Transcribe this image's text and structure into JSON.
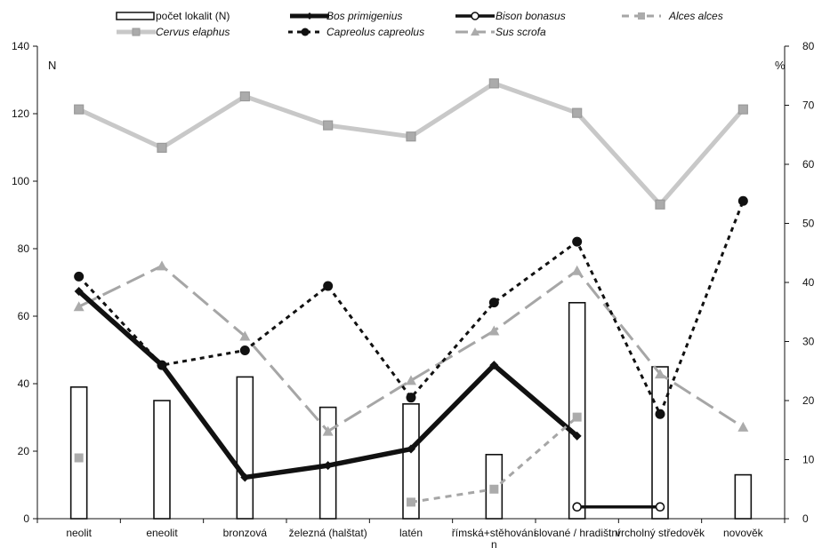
{
  "chart_data": {
    "type": "bar+line",
    "categories": [
      "neolit",
      "eneolit",
      "bronzová",
      "železná (halštat)",
      "latén",
      "římská+stěhování\nn",
      "slované / hradištní",
      "vrcholný středověk",
      "novověk"
    ],
    "left_axis": {
      "label": "N",
      "min": 0,
      "max": 140,
      "step": 20
    },
    "right_axis": {
      "label": "%",
      "min": 0,
      "max": 80,
      "step": 10
    },
    "bars": {
      "name": "počet lokalit  (N)",
      "axis": "left",
      "values": [
        39,
        35,
        42,
        33,
        34,
        19,
        64,
        45,
        13
      ]
    },
    "series": [
      {
        "name": "Bos primigenius",
        "key": "bos",
        "axis": "right",
        "values": [
          38.5,
          26,
          7,
          9,
          11.8,
          26,
          14,
          null,
          null
        ]
      },
      {
        "name": "Bison bonasus",
        "key": "bison",
        "axis": "right",
        "values": [
          null,
          null,
          null,
          null,
          null,
          null,
          2,
          2,
          null
        ]
      },
      {
        "name": "Alces alces",
        "key": "alces",
        "axis": "right",
        "values": [
          10.3,
          null,
          null,
          null,
          2.8,
          5,
          17.2,
          null,
          null
        ]
      },
      {
        "name": "Cervus elaphus",
        "key": "cervus",
        "axis": "right",
        "values": [
          69.3,
          62.8,
          71.5,
          66.6,
          64.7,
          73.7,
          68.7,
          53.2,
          69.3
        ]
      },
      {
        "name": "Capreolus capreolus",
        "key": "capreolus",
        "axis": "right",
        "values": [
          41,
          26,
          28.5,
          39.4,
          20.5,
          36.6,
          46.9,
          17.7,
          53.8
        ]
      },
      {
        "name": "Sus scrofa",
        "key": "sus",
        "axis": "right",
        "values": [
          35.9,
          42.8,
          30.9,
          14.8,
          23.4,
          31.8,
          42,
          24.5,
          15.5
        ]
      }
    ],
    "grid": false,
    "legend_position": "top"
  },
  "colors": {
    "black": "#111111",
    "light_gray": "#c8c8c8",
    "mid_gray": "#a6a6a6",
    "marker_fill": "#ababab",
    "marker_stroke": "#9a9a9a"
  }
}
